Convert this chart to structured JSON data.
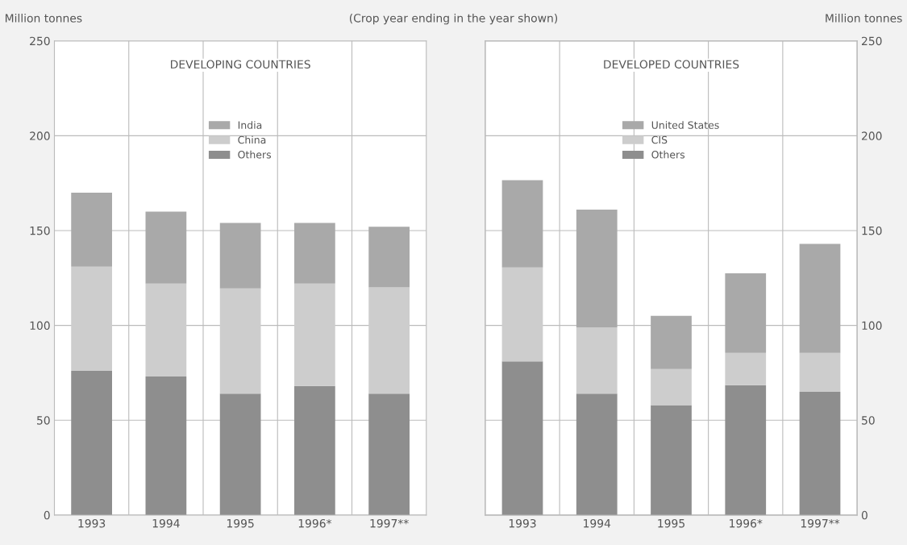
{
  "chart_data": [
    {
      "type": "bar",
      "stacked": true,
      "title": "DEVELOPING COUNTRIES",
      "ylabel": "Million tonnes",
      "annotations": [
        "(Crop year ending in the year shown)"
      ],
      "categories": [
        "1993",
        "1994",
        "1995",
        "1996*",
        "1997**"
      ],
      "series": [
        {
          "name": "Others",
          "color": "#8e8e8e",
          "values": [
            76,
            73,
            64,
            68,
            64
          ]
        },
        {
          "name": "China",
          "color": "#cdcdcd",
          "values": [
            55,
            49,
            55.5,
            54,
            56
          ]
        },
        {
          "name": "India",
          "color": "#a9a9a9",
          "values": [
            39,
            38,
            34.5,
            32,
            32
          ]
        }
      ],
      "ylim": [
        0,
        250
      ],
      "yticks": [
        0,
        50,
        100,
        150,
        200,
        250
      ],
      "grid": true,
      "legend": "top"
    },
    {
      "type": "bar",
      "stacked": true,
      "title": "DEVELOPED COUNTRIES",
      "y2label": "Million tonnes",
      "categories": [
        "1993",
        "1994",
        "1995",
        "1996*",
        "1997**"
      ],
      "series": [
        {
          "name": "Others",
          "color": "#8e8e8e",
          "values": [
            81,
            64,
            58,
            68.5,
            65
          ],
          "axis": "y2"
        },
        {
          "name": "CIS",
          "color": "#cdcdcd",
          "values": [
            49.5,
            35,
            19,
            17,
            20.5
          ],
          "axis": "y2"
        },
        {
          "name": "United States",
          "color": "#a9a9a9",
          "values": [
            46,
            62,
            28,
            42,
            57.5
          ],
          "axis": "y2"
        }
      ],
      "y2lim": [
        0,
        250
      ],
      "y2ticks": [
        0,
        50,
        100,
        150,
        200,
        250
      ],
      "grid": true,
      "legend": "top"
    }
  ]
}
